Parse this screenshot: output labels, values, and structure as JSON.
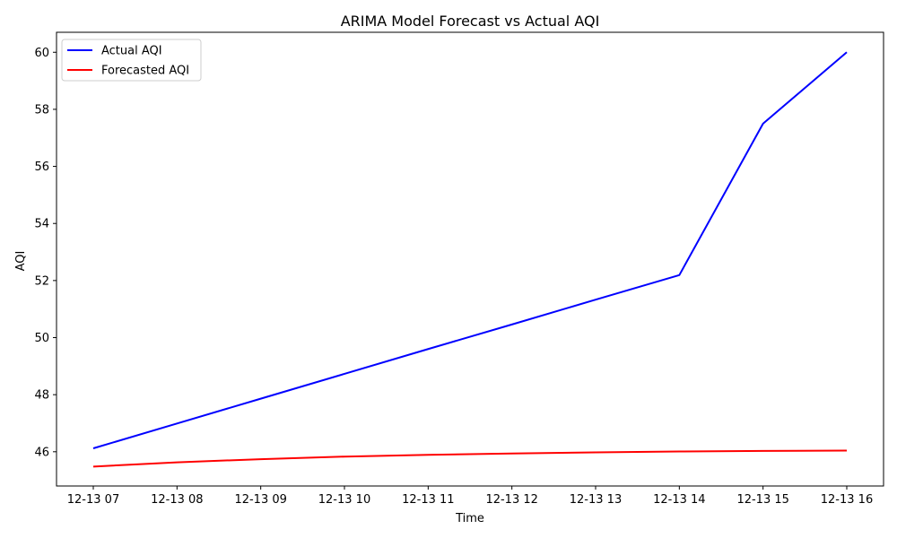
{
  "chart_data": {
    "type": "line",
    "title": "ARIMA Model Forecast vs Actual AQI",
    "xlabel": "Time",
    "ylabel": "AQI",
    "categories": [
      "12-13 07",
      "12-13 08",
      "12-13 09",
      "12-13 10",
      "12-13 11",
      "12-13 12",
      "12-13 13",
      "12-13 14",
      "12-13 15",
      "12-13 16"
    ],
    "ylim": [
      44.8,
      60.7
    ],
    "yticks": [
      46,
      48,
      50,
      52,
      54,
      56,
      58,
      60
    ],
    "grid": false,
    "legend_position": "top-left",
    "series": [
      {
        "name": "Actual AQI",
        "color": "#0000ff",
        "values": [
          46.12,
          46.99,
          47.86,
          48.73,
          49.6,
          50.46,
          51.33,
          52.19,
          57.5,
          60.0
        ]
      },
      {
        "name": "Forecasted AQI",
        "color": "#ff0000",
        "values": [
          45.48,
          45.63,
          45.74,
          45.83,
          45.89,
          45.94,
          45.98,
          46.01,
          46.03,
          46.04
        ]
      }
    ]
  }
}
